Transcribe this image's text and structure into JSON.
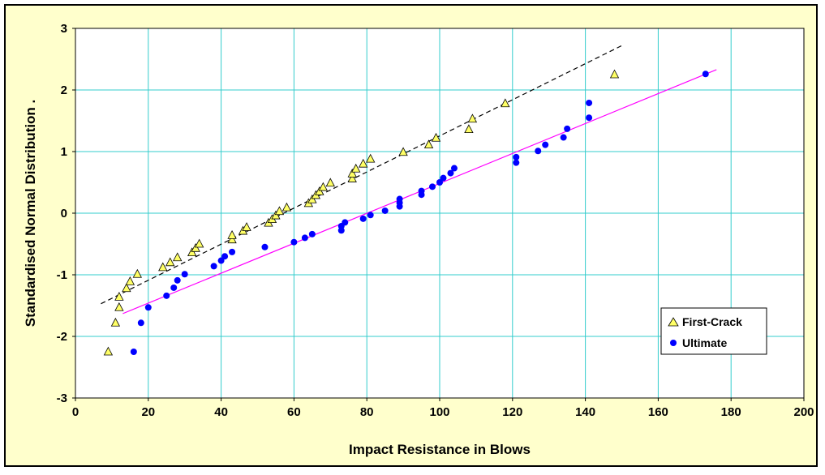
{
  "chart_data": {
    "type": "scatter",
    "xlabel": "Impact Resistance in Blows",
    "ylabel": "Standardised Normal Distribution  .",
    "xlim": [
      0,
      200
    ],
    "ylim": [
      -3,
      3
    ],
    "xticks": [
      0,
      20,
      40,
      60,
      80,
      100,
      120,
      140,
      160,
      180,
      200
    ],
    "yticks": [
      -3,
      -2,
      -1,
      0,
      1,
      2,
      3
    ],
    "grid": true,
    "legend_position": "right",
    "series": [
      {
        "name": "First-Crack",
        "marker": "triangle",
        "color": "#ffff66",
        "points": [
          [
            9,
            -2.25
          ],
          [
            11,
            -1.78
          ],
          [
            12,
            -1.53
          ],
          [
            12,
            -1.36
          ],
          [
            14,
            -1.22
          ],
          [
            15,
            -1.11
          ],
          [
            17,
            -0.99
          ],
          [
            24,
            -0.88
          ],
          [
            26,
            -0.8
          ],
          [
            28,
            -0.72
          ],
          [
            32,
            -0.64
          ],
          [
            33,
            -0.57
          ],
          [
            34,
            -0.5
          ],
          [
            43,
            -0.43
          ],
          [
            43,
            -0.36
          ],
          [
            46,
            -0.29
          ],
          [
            47,
            -0.23
          ],
          [
            53,
            -0.16
          ],
          [
            54,
            -0.1
          ],
          [
            55,
            -0.04
          ],
          [
            56,
            0.03
          ],
          [
            58,
            0.09
          ],
          [
            64,
            0.16
          ],
          [
            65,
            0.22
          ],
          [
            66,
            0.29
          ],
          [
            67,
            0.35
          ],
          [
            68,
            0.42
          ],
          [
            70,
            0.49
          ],
          [
            76,
            0.56
          ],
          [
            76,
            0.64
          ],
          [
            77,
            0.72
          ],
          [
            79,
            0.8
          ],
          [
            81,
            0.88
          ],
          [
            90,
            0.99
          ],
          [
            97,
            1.11
          ],
          [
            99,
            1.22
          ],
          [
            108,
            1.36
          ],
          [
            109,
            1.53
          ],
          [
            118,
            1.78
          ],
          [
            148,
            2.25
          ]
        ]
      },
      {
        "name": "Ultimate",
        "marker": "circle",
        "color": "#0000ff",
        "points": [
          [
            16,
            -2.25
          ],
          [
            18,
            -1.78
          ],
          [
            20,
            -1.53
          ],
          [
            25,
            -1.34
          ],
          [
            27,
            -1.21
          ],
          [
            28,
            -1.09
          ],
          [
            30,
            -0.99
          ],
          [
            38,
            -0.86
          ],
          [
            40,
            -0.77
          ],
          [
            41,
            -0.7
          ],
          [
            43,
            -0.63
          ],
          [
            52,
            -0.55
          ],
          [
            60,
            -0.47
          ],
          [
            63,
            -0.4
          ],
          [
            65,
            -0.34
          ],
          [
            73,
            -0.28
          ],
          [
            73,
            -0.21
          ],
          [
            74,
            -0.15
          ],
          [
            79,
            -0.09
          ],
          [
            81,
            -0.03
          ],
          [
            85,
            0.04
          ],
          [
            89,
            0.11
          ],
          [
            89,
            0.17
          ],
          [
            89,
            0.23
          ],
          [
            95,
            0.3
          ],
          [
            95,
            0.36
          ],
          [
            98,
            0.43
          ],
          [
            100,
            0.5
          ],
          [
            101,
            0.57
          ],
          [
            103,
            0.65
          ],
          [
            104,
            0.73
          ],
          [
            121,
            0.82
          ],
          [
            121,
            0.91
          ],
          [
            127,
            1.01
          ],
          [
            129,
            1.11
          ],
          [
            134,
            1.23
          ],
          [
            135,
            1.37
          ],
          [
            141,
            1.55
          ],
          [
            141,
            1.79
          ],
          [
            173,
            2.26
          ]
        ]
      }
    ],
    "trendlines": [
      {
        "series": "First-Crack",
        "style": "dashed",
        "color": "#000000",
        "x": [
          7,
          150
        ],
        "y": [
          -1.47,
          2.72
        ]
      },
      {
        "series": "Ultimate",
        "style": "solid",
        "color": "#ff00ff",
        "x": [
          13,
          176
        ],
        "y": [
          -1.63,
          2.33
        ]
      }
    ]
  }
}
